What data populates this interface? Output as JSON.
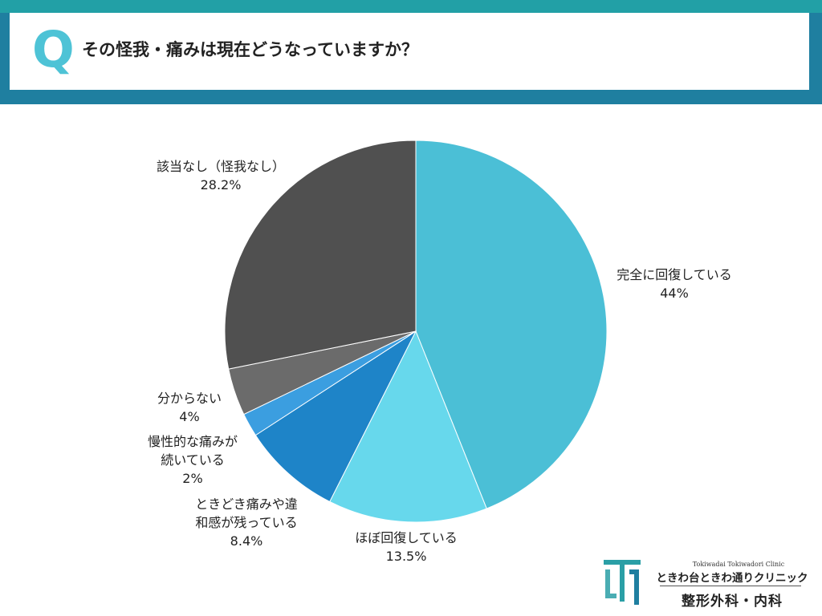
{
  "header": {
    "q_mark": "Q",
    "question": "その怪我・痛みは現在どうなっていますか？"
  },
  "colors": {
    "header_band": "#1f7fa0",
    "header_strip": "#22a0a6",
    "q_accent": "#4ec3d6"
  },
  "chart_data": {
    "type": "pie",
    "start_angle_deg": 0,
    "direction": "clockwise",
    "slices": [
      {
        "label": "完全に回復している",
        "value_text": "44%",
        "value": 44,
        "color": "#4bbfd6"
      },
      {
        "label": "ほぼ回復している",
        "value_text": "13.5%",
        "value": 13.5,
        "color": "#67d8ec"
      },
      {
        "label": "ときどき痛みや違和感が残っている",
        "value_text": "8.4%",
        "value": 8.4,
        "color": "#1e84c8"
      },
      {
        "label": "慢性的な痛みが続いている",
        "value_text": "2%",
        "value": 2,
        "color": "#3b9ee0"
      },
      {
        "label": "分からない",
        "value_text": "4%",
        "value": 4,
        "color": "#6b6b6b"
      },
      {
        "label": "該当なし（怪我なし）",
        "value_text": "28.2%",
        "value": 28.2,
        "color": "#505050"
      }
    ]
  },
  "logo": {
    "subtitle": "Tokiwadai Tokiwadori Clinic",
    "name": "ときわ台ときわ通りクリニック",
    "department": "整形外科・内科",
    "mark_color": "#2a9fa6"
  }
}
